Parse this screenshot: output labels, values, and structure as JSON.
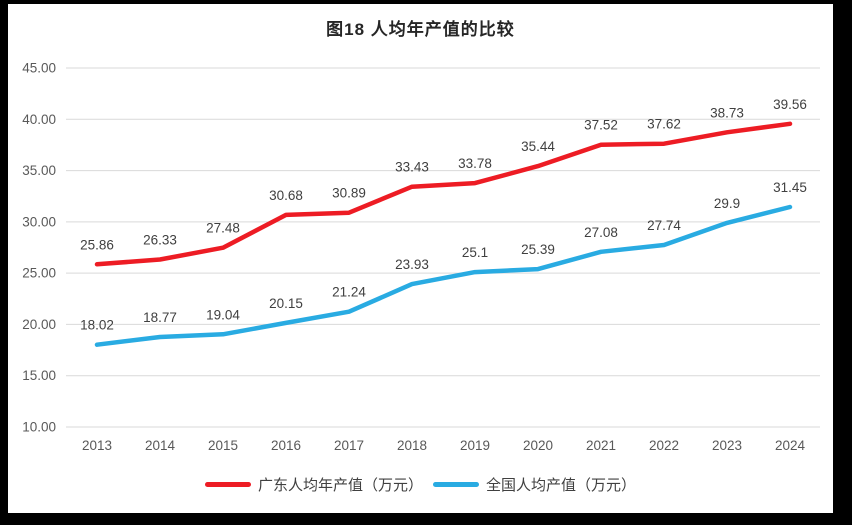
{
  "chart_data": {
    "type": "line",
    "title": "图18 人均年产值的比较",
    "categories": [
      "2013",
      "2014",
      "2015",
      "2016",
      "2017",
      "2018",
      "2019",
      "2020",
      "2021",
      "2022",
      "2023",
      "2024"
    ],
    "series": [
      {
        "name": "广东人均年产值（万元）",
        "color": "#ED1C24",
        "values": [
          25.86,
          26.33,
          27.48,
          30.68,
          30.89,
          33.43,
          33.78,
          35.44,
          37.52,
          37.62,
          38.73,
          39.56
        ],
        "labels": [
          "25.86",
          "26.33",
          "27.48",
          "30.68",
          "30.89",
          "33.43",
          "33.78",
          "35.44",
          "37.52",
          "37.62",
          "38.73",
          "39.56"
        ]
      },
      {
        "name": "全国人均产值（万元）",
        "color": "#29ABE2",
        "values": [
          18.02,
          18.77,
          19.04,
          20.15,
          21.24,
          23.93,
          25.1,
          25.39,
          27.08,
          27.74,
          29.9,
          31.45
        ],
        "labels": [
          "18.02",
          "18.77",
          "19.04",
          "20.15",
          "21.24",
          "23.93",
          "25.1",
          "25.39",
          "27.08",
          "27.74",
          "29.9",
          "31.45"
        ]
      }
    ],
    "ylim": [
      10,
      45
    ],
    "yticks": [
      {
        "value": 45,
        "label": "45.00"
      },
      {
        "value": 40,
        "label": "40.00"
      },
      {
        "value": 35,
        "label": "35.00"
      },
      {
        "value": 30,
        "label": "30.00"
      },
      {
        "value": 25,
        "label": "25.00"
      },
      {
        "value": 20,
        "label": "20.00"
      },
      {
        "value": 15,
        "label": "15.00"
      },
      {
        "value": 10,
        "label": "10.00"
      }
    ],
    "grid": true,
    "legend_position": "bottom",
    "gridline_color": "#D9D9D9",
    "tick_color": "#595959",
    "data_label_color": "#404040"
  }
}
